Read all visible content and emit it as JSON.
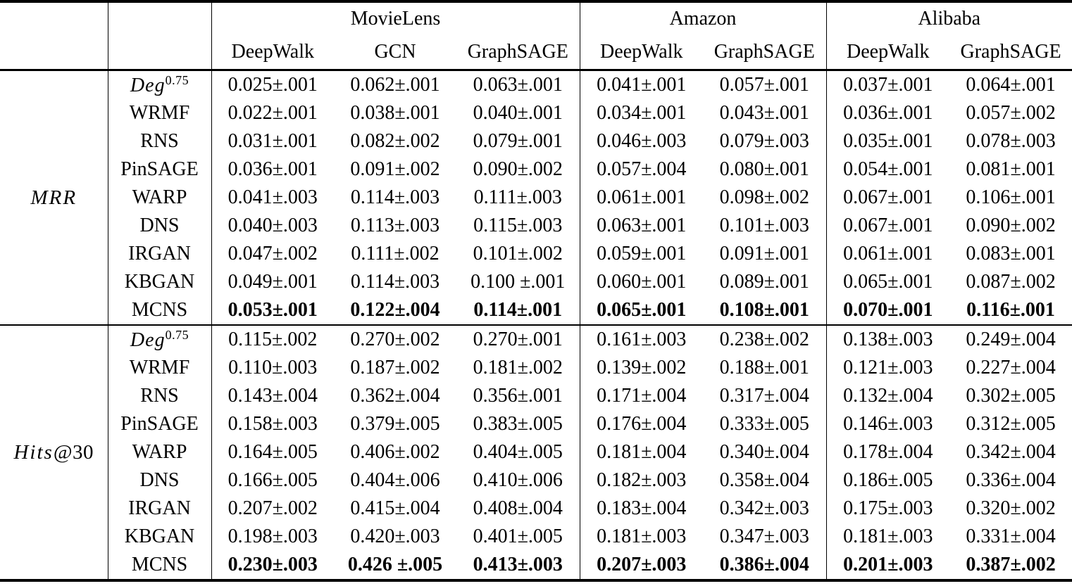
{
  "table": {
    "col_groups": [
      {
        "label": "MovieLens",
        "methods": [
          "DeepWalk",
          "GCN",
          "GraphSAGE"
        ]
      },
      {
        "label": "Amazon",
        "methods": [
          "DeepWalk",
          "GraphSAGE"
        ]
      },
      {
        "label": "Alibaba",
        "methods": [
          "DeepWalk",
          "GraphSAGE"
        ]
      }
    ],
    "sections": [
      {
        "metric_italic": "MRR",
        "metric_suffix": "",
        "rows": [
          {
            "sampler": "Deg",
            "sampler_sup": "0.75",
            "bold": false,
            "values": [
              "0.025±.001",
              "0.062±.001",
              "0.063±.001",
              "0.041±.001",
              "0.057±.001",
              "0.037±.001",
              "0.064±.001"
            ]
          },
          {
            "sampler": "WRMF",
            "bold": false,
            "values": [
              "0.022±.001",
              "0.038±.001",
              "0.040±.001",
              "0.034±.001",
              "0.043±.001",
              "0.036±.001",
              "0.057±.002"
            ]
          },
          {
            "sampler": "RNS",
            "bold": false,
            "values": [
              "0.031±.001",
              "0.082±.002",
              "0.079±.001",
              "0.046±.003",
              "0.079±.003",
              "0.035±.001",
              "0.078±.003"
            ]
          },
          {
            "sampler": "PinSAGE",
            "bold": false,
            "values": [
              "0.036±.001",
              "0.091±.002",
              "0.090±.002",
              "0.057±.004",
              "0.080±.001",
              "0.054±.001",
              "0.081±.001"
            ]
          },
          {
            "sampler": "WARP",
            "bold": false,
            "values": [
              "0.041±.003",
              "0.114±.003",
              "0.111±.003",
              "0.061±.001",
              "0.098±.002",
              "0.067±.001",
              "0.106±.001"
            ]
          },
          {
            "sampler": "DNS",
            "bold": false,
            "values": [
              "0.040±.003",
              "0.113±.003",
              "0.115±.003",
              "0.063±.001",
              "0.101±.003",
              "0.067±.001",
              "0.090±.002"
            ]
          },
          {
            "sampler": "IRGAN",
            "bold": false,
            "values": [
              "0.047±.002",
              "0.111±.002",
              "0.101±.002",
              "0.059±.001",
              "0.091±.001",
              "0.061±.001",
              "0.083±.001"
            ]
          },
          {
            "sampler": "KBGAN",
            "bold": false,
            "values": [
              "0.049±.001",
              "0.114±.003",
              "0.100 ±.001",
              "0.060±.001",
              "0.089±.001",
              "0.065±.001",
              "0.087±.002"
            ]
          },
          {
            "sampler": "MCNS",
            "bold": true,
            "values": [
              "0.053±.001",
              "0.122±.004",
              "0.114±.001",
              "0.065±.001",
              "0.108±.001",
              "0.070±.001",
              "0.116±.001"
            ]
          }
        ]
      },
      {
        "metric_italic": "Hits",
        "metric_suffix": "@30",
        "rows": [
          {
            "sampler": "Deg",
            "sampler_sup": "0.75",
            "bold": false,
            "values": [
              "0.115±.002",
              "0.270±.002",
              "0.270±.001",
              "0.161±.003",
              "0.238±.002",
              "0.138±.003",
              "0.249±.004"
            ]
          },
          {
            "sampler": "WRMF",
            "bold": false,
            "values": [
              "0.110±.003",
              "0.187±.002",
              "0.181±.002",
              "0.139±.002",
              "0.188±.001",
              "0.121±.003",
              "0.227±.004"
            ]
          },
          {
            "sampler": "RNS",
            "bold": false,
            "values": [
              "0.143±.004",
              "0.362±.004",
              "0.356±.001",
              "0.171±.004",
              "0.317±.004",
              "0.132±.004",
              "0.302±.005"
            ]
          },
          {
            "sampler": "PinSAGE",
            "bold": false,
            "values": [
              "0.158±.003",
              "0.379±.005",
              "0.383±.005",
              "0.176±.004",
              "0.333±.005",
              "0.146±.003",
              "0.312±.005"
            ]
          },
          {
            "sampler": "WARP",
            "bold": false,
            "values": [
              "0.164±.005",
              "0.406±.002",
              "0.404±.005",
              "0.181±.004",
              "0.340±.004",
              "0.178±.004",
              "0.342±.004"
            ]
          },
          {
            "sampler": "DNS",
            "bold": false,
            "values": [
              "0.166±.005",
              "0.404±.006",
              "0.410±.006",
              "0.182±.003",
              "0.358±.004",
              "0.186±.005",
              "0.336±.004"
            ]
          },
          {
            "sampler": "IRGAN",
            "bold": false,
            "values": [
              "0.207±.002",
              "0.415±.004",
              "0.408±.004",
              "0.183±.004",
              "0.342±.003",
              "0.175±.003",
              "0.320±.002"
            ]
          },
          {
            "sampler": "KBGAN",
            "bold": false,
            "values": [
              "0.198±.003",
              "0.420±.003",
              "0.401±.005",
              "0.181±.003",
              "0.347±.003",
              "0.181±.003",
              "0.331±.004"
            ]
          },
          {
            "sampler": "MCNS",
            "bold": true,
            "values": [
              "0.230±.003",
              "0.426 ±.005",
              "0.413±.003",
              "0.207±.003",
              "0.386±.004",
              "0.201±.003",
              "0.387±.002"
            ]
          }
        ]
      }
    ]
  }
}
